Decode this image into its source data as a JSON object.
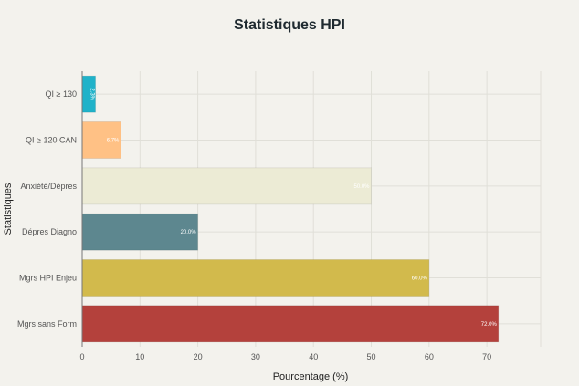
{
  "chart_data": {
    "type": "bar",
    "orientation": "horizontal",
    "title": "Statistiques HPI",
    "xlabel": "Pourcentage (%)",
    "ylabel": "Statistiques",
    "xlim": [
      0,
      79.3
    ],
    "xticks": [
      0,
      10,
      20,
      30,
      40,
      50,
      60,
      70
    ],
    "grid": true,
    "categories": [
      "QI ≥ 130",
      "QI ≥ 120 CAN",
      "Anxiété/Dépres",
      "Dépres Diagno",
      "Mgrs HPI Enjeu",
      "Mgrs sans Form"
    ],
    "values": [
      2.3,
      6.7,
      50.0,
      20.0,
      60.0,
      72.0
    ],
    "data_labels": [
      "2.3%",
      "6.7%",
      "50.0%",
      "20.0%",
      "60.0%",
      "72.0%"
    ],
    "colors": [
      "#1fb2c9",
      "#ffc185",
      "#ecebd5",
      "#5d878f",
      "#d2ba4c",
      "#b4413c"
    ]
  }
}
